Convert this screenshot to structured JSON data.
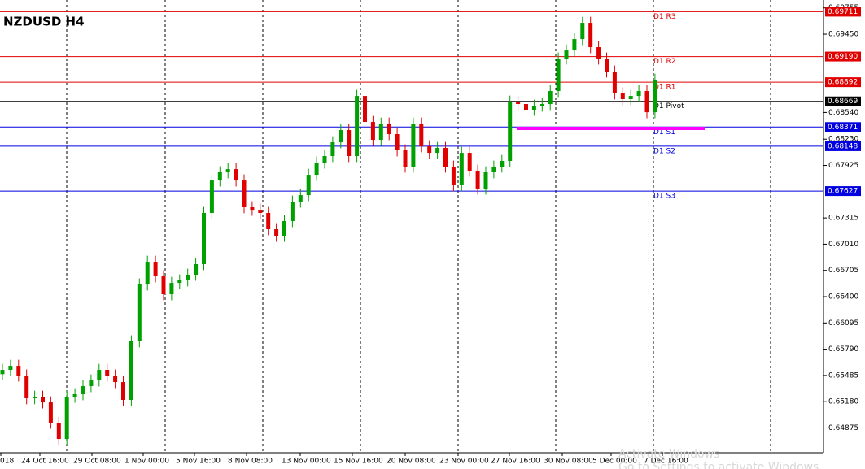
{
  "chart_data": {
    "type": "candlestick",
    "title": "NZDUSD H4",
    "up_color": "#00a000",
    "down_color": "#e00000",
    "ylim": [
      0.64587,
      0.69847
    ],
    "yticks": [
      0.69755,
      {
        "value": 0.6945,
        "label": "0.69450"
      },
      {
        "value": 0.6854,
        "label": "0.68540"
      },
      {
        "value": 0.6823,
        "label": "0.68230"
      },
      0.67925,
      0.67315,
      {
        "value": 0.6701,
        "label": "0.67010"
      },
      0.66705,
      {
        "value": 0.664,
        "label": "0.66400"
      },
      0.66095,
      {
        "value": 0.6579,
        "label": "0.65790"
      },
      0.65485,
      {
        "value": 0.6518,
        "label": "0.65180"
      },
      0.64875
    ],
    "x_labels": [
      "018",
      "24 Oct 16:00",
      "29 Oct 08:00",
      "1 Nov 00:00",
      "5 Nov 16:00",
      "8 Nov 08:00",
      "13 Nov 00:00",
      "15 Nov 16:00",
      "20 Nov 08:00",
      "23 Nov 00:00",
      "27 Nov 16:00",
      "30 Nov 08:00",
      "5 Dec 00:00",
      "7 Dec 16:00"
    ],
    "open": [
      0.655,
      0.6555,
      0.65597,
      0.65484,
      0.6522,
      0.65238,
      0.65172,
      0.64936,
      0.64747,
      0.65238,
      0.65267,
      0.65361,
      0.65427,
      0.6555,
      0.65484,
      0.65408,
      0.65201,
      0.65881,
      0.66542,
      0.66806,
      0.66636,
      0.66428,
      0.6656,
      0.66589,
      0.66655,
      0.66778,
      0.67373,
      0.6775,
      0.67845,
      0.67882,
      0.6775,
      0.67439,
      0.6741,
      0.67373,
      0.67184,
      0.67108,
      0.67278,
      0.67505,
      0.6758,
      0.67816,
      0.67958,
      0.68034,
      0.68194,
      0.68336,
      0.68034,
      0.68732,
      0.6843,
      0.68222,
      0.68411,
      0.68289,
      0.681,
      0.67911,
      0.68411,
      0.68147,
      0.68071,
      0.68128,
      0.67911,
      0.67694,
      0.68071,
      0.67864,
      0.67656,
      0.67845,
      0.67911,
      0.67977,
      0.68666,
      0.68638,
      0.68572,
      0.68619,
      0.68638,
      0.68789,
      0.69167,
      0.69261,
      0.69393,
      0.69582,
      0.69299,
      0.69167,
      0.69016,
      0.68761,
      0.68695,
      0.68732,
      0.68789,
      0.68543
    ],
    "high": [
      0.6562,
      0.65667,
      0.65667,
      0.65554,
      0.65308,
      0.65308,
      0.65242,
      0.65006,
      0.65308,
      0.65337,
      0.65431,
      0.65497,
      0.6562,
      0.6562,
      0.65554,
      0.65478,
      0.65951,
      0.66612,
      0.66876,
      0.66876,
      0.66706,
      0.6663,
      0.66659,
      0.66725,
      0.66848,
      0.67443,
      0.6782,
      0.67915,
      0.67952,
      0.67952,
      0.6782,
      0.67509,
      0.6748,
      0.67443,
      0.67254,
      0.67348,
      0.67575,
      0.6765,
      0.67886,
      0.68028,
      0.68104,
      0.68264,
      0.68406,
      0.68406,
      0.68802,
      0.68802,
      0.685,
      0.68481,
      0.68481,
      0.68359,
      0.6817,
      0.68481,
      0.68481,
      0.68217,
      0.68198,
      0.68198,
      0.67981,
      0.68141,
      0.68141,
      0.67934,
      0.67915,
      0.67981,
      0.68047,
      0.68736,
      0.68736,
      0.68708,
      0.68689,
      0.68708,
      0.68859,
      0.69237,
      0.69331,
      0.69463,
      0.69652,
      0.69652,
      0.69369,
      0.69237,
      0.69086,
      0.68831,
      0.68802,
      0.68859,
      0.68859,
      0.68991
    ],
    "low": [
      0.6543,
      0.6548,
      0.65414,
      0.6515,
      0.6515,
      0.65102,
      0.64866,
      0.64677,
      0.64677,
      0.65168,
      0.65197,
      0.65291,
      0.65357,
      0.65414,
      0.65338,
      0.65131,
      0.65131,
      0.65811,
      0.66472,
      0.66566,
      0.66358,
      0.66358,
      0.6649,
      0.66519,
      0.66585,
      0.66708,
      0.67303,
      0.6768,
      0.67775,
      0.6768,
      0.67369,
      0.6734,
      0.67303,
      0.67114,
      0.67038,
      0.67038,
      0.67208,
      0.67435,
      0.6751,
      0.67746,
      0.67888,
      0.67964,
      0.68124,
      0.67964,
      0.67964,
      0.6836,
      0.68152,
      0.68152,
      0.68219,
      0.6803,
      0.67841,
      0.67841,
      0.68077,
      0.68001,
      0.68001,
      0.67841,
      0.67624,
      0.67624,
      0.67794,
      0.67586,
      0.67586,
      0.67775,
      0.67841,
      0.67907,
      0.68568,
      0.68502,
      0.68502,
      0.68549,
      0.68568,
      0.68719,
      0.69097,
      0.69191,
      0.69323,
      0.69229,
      0.69097,
      0.68946,
      0.68691,
      0.68625,
      0.68625,
      0.68662,
      0.68473,
      0.68473
    ],
    "close": [
      0.6555,
      0.65597,
      0.65484,
      0.6522,
      0.65238,
      0.65172,
      0.64936,
      0.64747,
      0.65238,
      0.65267,
      0.65361,
      0.65427,
      0.6555,
      0.65484,
      0.65408,
      0.65201,
      0.65881,
      0.66542,
      0.66806,
      0.66636,
      0.66428,
      0.6656,
      0.66589,
      0.66655,
      0.66778,
      0.67373,
      0.6775,
      0.67845,
      0.67882,
      0.6775,
      0.67439,
      0.6741,
      0.67373,
      0.67184,
      0.67108,
      0.67278,
      0.67505,
      0.6758,
      0.67816,
      0.67958,
      0.68034,
      0.68194,
      0.68336,
      0.68034,
      0.68732,
      0.6843,
      0.68222,
      0.68411,
      0.68289,
      0.681,
      0.67911,
      0.68411,
      0.68147,
      0.68071,
      0.68128,
      0.67911,
      0.67694,
      0.68071,
      0.67864,
      0.67656,
      0.67845,
      0.67911,
      0.67977,
      0.68666,
      0.68638,
      0.68572,
      0.68619,
      0.68638,
      0.68789,
      0.69167,
      0.69261,
      0.69393,
      0.69582,
      0.69299,
      0.69167,
      0.69016,
      0.68761,
      0.68695,
      0.68732,
      0.68789,
      0.68543,
      0.68921
    ],
    "levels": [
      {
        "name": "D1 R3",
        "value": 0.69711,
        "color": "#e00000"
      },
      {
        "name": "D1 R2",
        "value": 0.6919,
        "price_label": "0.69190",
        "color": "#e00000"
      },
      {
        "name": "D1 R1",
        "value": 0.68892,
        "color": "#e00000"
      },
      {
        "name": "D1 Pivot",
        "value": 0.68669,
        "color": "#000000"
      },
      {
        "name": "D1 S1",
        "value": 0.68371,
        "color": "#0000e0"
      },
      {
        "name": "D1 S2",
        "value": 0.68148,
        "color": "#0000e0"
      },
      {
        "name": "D1 S3",
        "value": 0.67627,
        "color": "#0000e0"
      }
    ],
    "support_line": {
      "value": 0.68355,
      "color": "#ff00ff"
    },
    "watermark": [
      "Activate Windows",
      "Go to Settings to activate Windows."
    ]
  }
}
